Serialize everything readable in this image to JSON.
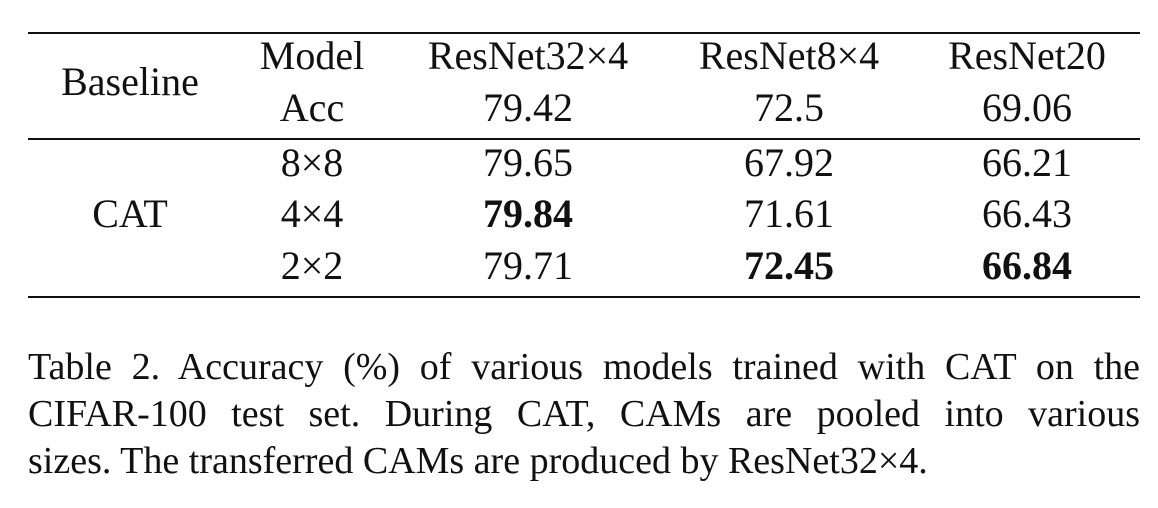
{
  "table": {
    "baseline_label": "Baseline",
    "cat_label": "CAT",
    "model_label": "Model",
    "acc_label": "Acc",
    "columns": [
      "ResNet32×4",
      "ResNet8×4",
      "ResNet20"
    ],
    "baseline_acc": [
      "79.42",
      "72.5",
      "69.06"
    ],
    "cat_rows": [
      {
        "size": "8×8",
        "values": [
          "79.65",
          "67.92",
          "66.21"
        ],
        "bold": [
          false,
          false,
          false
        ]
      },
      {
        "size": "4×4",
        "values": [
          "79.84",
          "71.61",
          "66.43"
        ],
        "bold": [
          true,
          false,
          false
        ]
      },
      {
        "size": "2×2",
        "values": [
          "79.71",
          "72.45",
          "66.84"
        ],
        "bold": [
          false,
          true,
          true
        ]
      }
    ]
  },
  "caption": {
    "line1": "Table 2. Accuracy (%) of various models trained with CAT on the",
    "line2": "CIFAR-100 test set.  During CAT, CAMs are pooled into various",
    "line3": "sizes. The transferred CAMs are produced by ResNet32×4."
  }
}
